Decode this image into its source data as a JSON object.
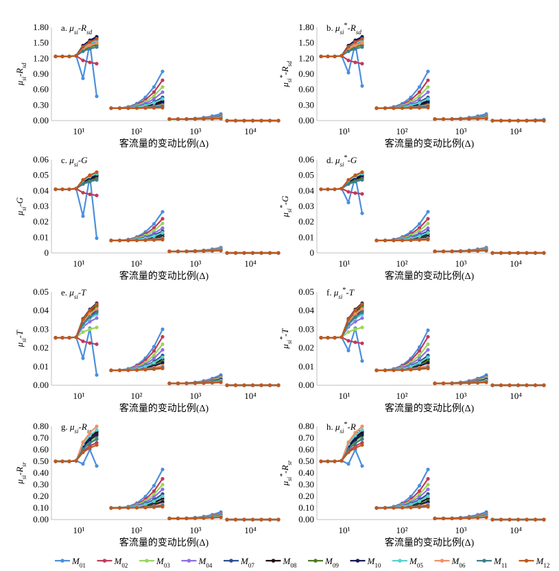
{
  "legend": [
    {
      "label": "M01",
      "color": "#4a8fdc"
    },
    {
      "label": "M02",
      "color": "#c0395a"
    },
    {
      "label": "M03",
      "color": "#99d65a"
    },
    {
      "label": "M04",
      "color": "#8e6ee6"
    },
    {
      "label": "M07",
      "color": "#2b4f8c"
    },
    {
      "label": "M08",
      "color": "#1a0d0d"
    },
    {
      "label": "M09",
      "color": "#4e7a22"
    },
    {
      "label": "M10",
      "color": "#17175a"
    },
    {
      "label": "M05",
      "color": "#58d2d2"
    },
    {
      "label": "M06",
      "color": "#f28e66"
    },
    {
      "label": "M11",
      "color": "#3d7d8c"
    },
    {
      "label": "M12",
      "color": "#c0571c"
    }
  ],
  "chart_data": [
    {
      "type": "line",
      "id": "a",
      "title": "a. μsi-Rsd",
      "ylabel": "μsi-Rsd",
      "xlabel": "客流量的变动比例(Δ)",
      "x_groups": [
        "10¹",
        "10²",
        "10³",
        "10⁴"
      ],
      "ylim": [
        0,
        1.8
      ],
      "yticks": [
        "0.00",
        "0.30",
        "0.60",
        "0.90",
        "1.20",
        "1.50",
        "1.80"
      ],
      "base": [
        1.24,
        0.24,
        0.03,
        0.0
      ],
      "group_ends": {
        "M01": [
          0.47,
          0.95,
          0.13,
          0.0
        ],
        "M02": [
          1.1,
          0.78,
          0.1,
          0.0
        ],
        "M03": [
          1.48,
          0.65,
          0.09,
          0.0
        ],
        "M04": [
          1.52,
          0.55,
          0.08,
          0.0
        ],
        "M07": [
          1.56,
          0.45,
          0.07,
          0.0
        ],
        "M08": [
          1.6,
          0.38,
          0.06,
          0.0
        ],
        "M09": [
          1.46,
          0.32,
          0.05,
          0.0
        ],
        "M10": [
          1.62,
          0.35,
          0.05,
          0.0
        ],
        "M05": [
          1.55,
          0.42,
          0.06,
          0.0
        ],
        "M06": [
          1.5,
          0.3,
          0.05,
          0.0
        ],
        "M11": [
          1.42,
          0.28,
          0.04,
          0.0
        ],
        "M12": [
          1.58,
          0.25,
          0.04,
          0.0
        ]
      }
    },
    {
      "type": "line",
      "id": "b",
      "title": "b. μsi*-Rsd",
      "ylabel": "μsi*-Rsd",
      "xlabel": "客流量的变动比例(Δ)",
      "x_groups": [
        "10¹",
        "10²",
        "10³",
        "10⁴"
      ],
      "ylim": [
        0,
        1.8
      ],
      "yticks": [
        "0.00",
        "0.30",
        "0.60",
        "0.90",
        "1.20",
        "1.50",
        "1.80"
      ],
      "base": [
        1.24,
        0.24,
        0.03,
        0.0
      ],
      "group_ends": {
        "M01": [
          0.67,
          0.95,
          0.13,
          0.02
        ],
        "M02": [
          1.1,
          0.78,
          0.1,
          0.0
        ],
        "M03": [
          1.48,
          0.65,
          0.09,
          0.0
        ],
        "M04": [
          1.52,
          0.55,
          0.08,
          0.0
        ],
        "M07": [
          1.56,
          0.45,
          0.07,
          0.0
        ],
        "M08": [
          1.6,
          0.38,
          0.06,
          0.0
        ],
        "M09": [
          1.46,
          0.32,
          0.05,
          0.0
        ],
        "M10": [
          1.62,
          0.35,
          0.05,
          0.0
        ],
        "M05": [
          1.55,
          0.42,
          0.06,
          0.0
        ],
        "M06": [
          1.5,
          0.3,
          0.05,
          0.0
        ],
        "M11": [
          1.42,
          0.28,
          0.04,
          0.0
        ],
        "M12": [
          1.58,
          0.25,
          0.04,
          0.0
        ]
      }
    },
    {
      "type": "line",
      "id": "c",
      "title": "c. μsi-G",
      "ylabel": "μsi-G",
      "xlabel": "客流量的变动比例(Δ)",
      "x_groups": [
        "10¹",
        "10²",
        "10³",
        "10⁴"
      ],
      "ylim": [
        0,
        0.06
      ],
      "yticks": [
        "0",
        "0.01",
        "0.02",
        "0.03",
        "0.04",
        "0.05",
        "0.06"
      ],
      "base": [
        0.041,
        0.008,
        0.001,
        0.0
      ],
      "group_ends": {
        "M01": [
          0.0095,
          0.0265,
          0.0035,
          0.0
        ],
        "M02": [
          0.037,
          0.022,
          0.003,
          0.0
        ],
        "M03": [
          0.049,
          0.019,
          0.0028,
          0.0
        ],
        "M04": [
          0.05,
          0.016,
          0.0025,
          0.0
        ],
        "M07": [
          0.051,
          0.014,
          0.0022,
          0.0
        ],
        "M08": [
          0.049,
          0.012,
          0.002,
          0.0
        ],
        "M09": [
          0.048,
          0.011,
          0.0018,
          0.0
        ],
        "M10": [
          0.05,
          0.0105,
          0.0018,
          0.0
        ],
        "M05": [
          0.051,
          0.013,
          0.002,
          0.0
        ],
        "M06": [
          0.052,
          0.0095,
          0.0016,
          0.0
        ],
        "M11": [
          0.047,
          0.009,
          0.0015,
          0.0
        ],
        "M12": [
          0.052,
          0.0085,
          0.0015,
          0.0
        ]
      }
    },
    {
      "type": "line",
      "id": "d",
      "title": "d. μsi*-G",
      "ylabel": "μsi*-G",
      "xlabel": "客流量的变动比例(Δ)",
      "x_groups": [
        "10¹",
        "10²",
        "10³",
        "10⁴"
      ],
      "ylim": [
        0,
        0.06
      ],
      "yticks": [
        "0",
        "0.01",
        "0.02",
        "0.03",
        "0.04",
        "0.05",
        "0.06"
      ],
      "base": [
        0.041,
        0.008,
        0.001,
        0.0
      ],
      "group_ends": {
        "M01": [
          0.0255,
          0.0265,
          0.0035,
          0.0
        ],
        "M02": [
          0.038,
          0.022,
          0.003,
          0.0
        ],
        "M03": [
          0.049,
          0.019,
          0.0028,
          0.0
        ],
        "M04": [
          0.05,
          0.016,
          0.0025,
          0.0
        ],
        "M07": [
          0.051,
          0.014,
          0.0022,
          0.0
        ],
        "M08": [
          0.049,
          0.012,
          0.002,
          0.0
        ],
        "M09": [
          0.048,
          0.011,
          0.0018,
          0.0
        ],
        "M10": [
          0.05,
          0.0105,
          0.0018,
          0.0
        ],
        "M05": [
          0.051,
          0.013,
          0.002,
          0.0
        ],
        "M06": [
          0.052,
          0.0095,
          0.0016,
          0.0
        ],
        "M11": [
          0.047,
          0.009,
          0.0015,
          0.0
        ],
        "M12": [
          0.052,
          0.0085,
          0.0015,
          0.0
        ]
      }
    },
    {
      "type": "line",
      "id": "e",
      "title": "e. μsi-T",
      "ylabel": "μsi-T",
      "xlabel": "客流量的变动比例(Δ)",
      "x_groups": [
        "10¹",
        "10²",
        "10³",
        "10⁴"
      ],
      "ylim": [
        0,
        0.05
      ],
      "yticks": [
        "0.00",
        "0.01",
        "0.02",
        "0.03",
        "0.04",
        "0.05"
      ],
      "base": [
        0.0255,
        0.008,
        0.001,
        0.0
      ],
      "group_ends": {
        "M01": [
          0.0055,
          0.03,
          0.0055,
          0.0
        ],
        "M02": [
          0.022,
          0.026,
          0.0045,
          0.0
        ],
        "M03": [
          0.031,
          0.022,
          0.004,
          0.0
        ],
        "M04": [
          0.036,
          0.019,
          0.0035,
          0.0
        ],
        "M07": [
          0.04,
          0.016,
          0.003,
          0.0
        ],
        "M08": [
          0.043,
          0.014,
          0.0028,
          0.0
        ],
        "M09": [
          0.042,
          0.013,
          0.0025,
          0.0
        ],
        "M10": [
          0.044,
          0.012,
          0.0022,
          0.0
        ],
        "M05": [
          0.038,
          0.015,
          0.0025,
          0.0
        ],
        "M06": [
          0.041,
          0.0105,
          0.002,
          0.0
        ],
        "M11": [
          0.039,
          0.0095,
          0.0018,
          0.0
        ],
        "M12": [
          0.0435,
          0.009,
          0.0015,
          0.0
        ]
      }
    },
    {
      "type": "line",
      "id": "f",
      "title": "f. μsi*-T",
      "ylabel": "μsi*-T",
      "xlabel": "客流量的变动比例(Δ)",
      "x_groups": [
        "10¹",
        "10²",
        "10³",
        "10⁴"
      ],
      "ylim": [
        0,
        0.05
      ],
      "yticks": [
        "0.00",
        "0.01",
        "0.02",
        "0.03",
        "0.04",
        "0.05"
      ],
      "base": [
        0.0255,
        0.008,
        0.001,
        0.0
      ],
      "group_ends": {
        "M01": [
          0.013,
          0.0295,
          0.0055,
          0.0
        ],
        "M02": [
          0.0225,
          0.026,
          0.0045,
          0.0
        ],
        "M03": [
          0.031,
          0.022,
          0.004,
          0.0
        ],
        "M04": [
          0.036,
          0.019,
          0.0035,
          0.0
        ],
        "M07": [
          0.04,
          0.016,
          0.003,
          0.0
        ],
        "M08": [
          0.043,
          0.014,
          0.0028,
          0.0
        ],
        "M09": [
          0.042,
          0.013,
          0.0025,
          0.0
        ],
        "M10": [
          0.044,
          0.012,
          0.0022,
          0.0
        ],
        "M05": [
          0.038,
          0.015,
          0.0025,
          0.0
        ],
        "M06": [
          0.041,
          0.0105,
          0.002,
          0.0
        ],
        "M11": [
          0.039,
          0.0095,
          0.0018,
          0.0
        ],
        "M12": [
          0.0435,
          0.009,
          0.0015,
          0.0
        ]
      }
    },
    {
      "type": "line",
      "id": "g",
      "title": "g. μsi-Rsr",
      "ylabel": "μsi-Rsr",
      "xlabel": "客流量的变动比例(Δ)",
      "x_groups": [
        "10¹",
        "10²",
        "10³",
        "10⁴"
      ],
      "ylim": [
        0,
        0.8
      ],
      "yticks": [
        "0.00",
        "0.10",
        "0.20",
        "0.30",
        "0.40",
        "0.50",
        "0.60",
        "0.70",
        "0.80"
      ],
      "base": [
        0.5,
        0.1,
        0.01,
        0.0
      ],
      "group_ends": {
        "M01": [
          0.46,
          0.43,
          0.065,
          0.0
        ],
        "M02": [
          0.66,
          0.35,
          0.05,
          0.0
        ],
        "M03": [
          0.7,
          0.3,
          0.045,
          0.0
        ],
        "M04": [
          0.74,
          0.26,
          0.04,
          0.0
        ],
        "M07": [
          0.76,
          0.22,
          0.035,
          0.0
        ],
        "M08": [
          0.75,
          0.18,
          0.03,
          0.0
        ],
        "M09": [
          0.72,
          0.16,
          0.028,
          0.0
        ],
        "M10": [
          0.73,
          0.15,
          0.025,
          0.0
        ],
        "M05": [
          0.77,
          0.2,
          0.03,
          0.0
        ],
        "M06": [
          0.8,
          0.13,
          0.022,
          0.0
        ],
        "M11": [
          0.69,
          0.12,
          0.02,
          0.0
        ],
        "M12": [
          0.64,
          0.11,
          0.02,
          0.0
        ]
      }
    },
    {
      "type": "line",
      "id": "h",
      "title": "h. μsi*-Rsr",
      "ylabel": "μsi*-Rsr",
      "xlabel": "客流量的变动比例(Δ)",
      "x_groups": [
        "10¹",
        "10²",
        "10³",
        "10⁴"
      ],
      "ylim": [
        0,
        0.8
      ],
      "yticks": [
        "0.00",
        "0.10",
        "0.20",
        "0.30",
        "0.40",
        "0.50",
        "0.60",
        "0.70",
        "0.80"
      ],
      "base": [
        0.5,
        0.1,
        0.01,
        0.0
      ],
      "group_ends": {
        "M01": [
          0.46,
          0.43,
          0.065,
          0.0
        ],
        "M02": [
          0.66,
          0.35,
          0.05,
          0.0
        ],
        "M03": [
          0.7,
          0.3,
          0.045,
          0.0
        ],
        "M04": [
          0.74,
          0.26,
          0.04,
          0.0
        ],
        "M07": [
          0.76,
          0.22,
          0.035,
          0.0
        ],
        "M08": [
          0.75,
          0.18,
          0.03,
          0.0
        ],
        "M09": [
          0.72,
          0.16,
          0.028,
          0.0
        ],
        "M10": [
          0.73,
          0.15,
          0.025,
          0.0
        ],
        "M05": [
          0.77,
          0.2,
          0.03,
          0.0
        ],
        "M06": [
          0.8,
          0.13,
          0.022,
          0.0
        ],
        "M11": [
          0.69,
          0.12,
          0.02,
          0.0
        ],
        "M12": [
          0.64,
          0.11,
          0.02,
          0.0
        ]
      }
    }
  ]
}
